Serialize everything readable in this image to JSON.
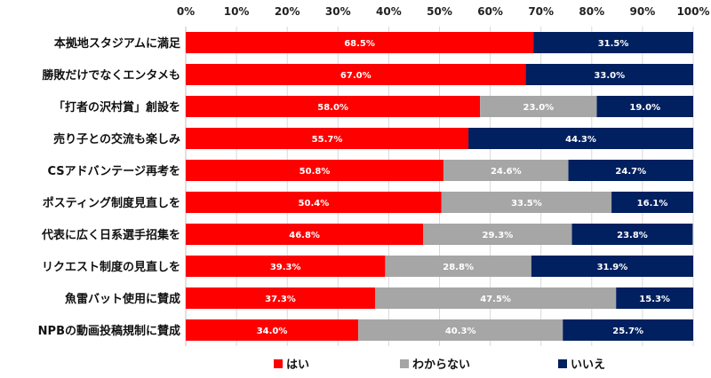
{
  "chart_data": {
    "type": "bar",
    "orientation": "horizontal",
    "stacked": true,
    "xlim": [
      0,
      100
    ],
    "x_ticks": [
      "0%",
      "10%",
      "20%",
      "30%",
      "40%",
      "50%",
      "60%",
      "70%",
      "80%",
      "90%",
      "100%"
    ],
    "axis_position": "top",
    "legend_position": "bottom",
    "grid": true,
    "categories": [
      "本拠地スタジアムに満足",
      "勝敗だけでなくエンタメも",
      "「打者の沢村賞」創設を",
      "売り子との交流も楽しみ",
      "CSアドバンテージ再考を",
      "ポスティング制度見直しを",
      "代表に広く日系選手招集を",
      "リクエスト制度の見直しを",
      "魚雷バット使用に賛成",
      "NPBの動画投稿規制に賛成"
    ],
    "series": [
      {
        "name": "はい",
        "color": "#ff0000",
        "values": [
          68.5,
          67.0,
          58.0,
          55.7,
          50.8,
          50.4,
          46.8,
          39.3,
          37.3,
          34.0
        ],
        "labels": [
          "68.5%",
          "67.0%",
          "58.0%",
          "55.7%",
          "50.8%",
          "50.4%",
          "46.8%",
          "39.3%",
          "37.3%",
          "34.0%"
        ]
      },
      {
        "name": "わからない",
        "color": "#a6a6a6",
        "values": [
          0,
          0,
          23.0,
          0,
          24.6,
          33.5,
          29.3,
          28.8,
          47.5,
          40.3
        ],
        "labels": [
          "",
          "",
          "23.0%",
          "",
          "24.6%",
          "33.5%",
          "29.3%",
          "28.8%",
          "47.5%",
          "40.3%"
        ]
      },
      {
        "name": "いいえ",
        "color": "#002060",
        "values": [
          31.5,
          33.0,
          19.0,
          44.3,
          24.7,
          16.1,
          23.8,
          31.9,
          15.3,
          25.7
        ],
        "labels": [
          "31.5%",
          "33.0%",
          "19.0%",
          "44.3%",
          "24.7%",
          "16.1%",
          "23.8%",
          "31.9%",
          "15.3%",
          "25.7%"
        ]
      }
    ]
  }
}
